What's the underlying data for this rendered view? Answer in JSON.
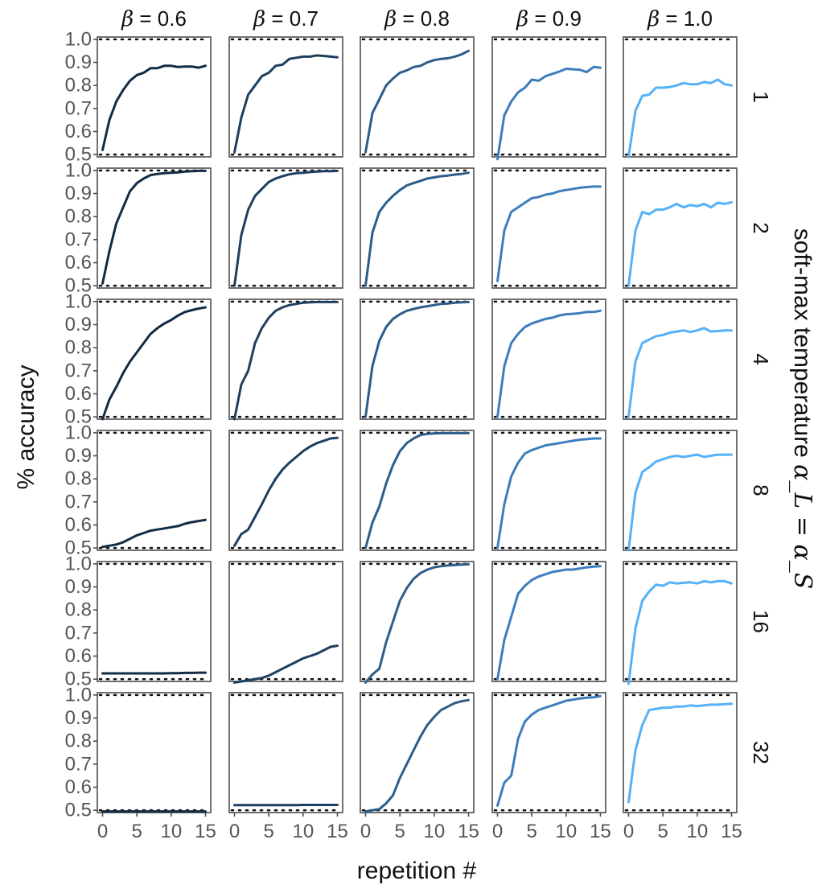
{
  "chart_data": {
    "type": "line",
    "layout": "facet-grid",
    "title": "",
    "xlabel": "repetition #",
    "ylabel": "% accuracy",
    "row_title_pre": "soft-max temperature ",
    "row_title_math": "α_L = α_S",
    "xlim": [
      0,
      15
    ],
    "ylim": [
      0.49,
      1.01
    ],
    "x_ticks": [
      0,
      5,
      10,
      15
    ],
    "x_tick_labels": [
      "0",
      "5",
      "10",
      "15"
    ],
    "y_ticks": [
      0.5,
      0.6,
      0.7,
      0.8,
      0.9,
      1.0
    ],
    "y_tick_labels": [
      "0.5",
      "0.6",
      "0.7",
      "0.8",
      "0.9",
      "1.0"
    ],
    "reference_lines": [
      0.5,
      1.0
    ],
    "grid": false,
    "columns": [
      {
        "label_math": "β",
        "label_value": " = 0.6",
        "color": "#132b43"
      },
      {
        "label_math": "β",
        "label_value": " = 0.7",
        "color": "#1d3f5f"
      },
      {
        "label_math": "β",
        "label_value": " = 0.8",
        "color": "#2c5d8a"
      },
      {
        "label_math": "β",
        "label_value": " = 0.9",
        "color": "#3e7dbd"
      },
      {
        "label_math": "β",
        "label_value": " = 1.0",
        "color": "#56b1f7"
      }
    ],
    "rows": [
      "1",
      "2",
      "4",
      "8",
      "16",
      "32"
    ],
    "x": [
      0,
      1,
      2,
      3,
      4,
      5,
      6,
      7,
      8,
      9,
      10,
      11,
      12,
      13,
      14,
      15
    ],
    "panels": [
      [
        [
          0.52,
          0.65,
          0.73,
          0.78,
          0.82,
          0.845,
          0.855,
          0.875,
          0.875,
          0.885,
          0.885,
          0.88,
          0.882,
          0.882,
          0.877,
          0.885
        ],
        [
          0.51,
          0.66,
          0.76,
          0.8,
          0.84,
          0.855,
          0.885,
          0.89,
          0.915,
          0.92,
          0.925,
          0.925,
          0.93,
          0.928,
          0.925,
          0.922
        ],
        [
          0.51,
          0.68,
          0.74,
          0.8,
          0.83,
          0.855,
          0.865,
          0.88,
          0.885,
          0.9,
          0.91,
          0.915,
          0.918,
          0.925,
          0.935,
          0.95
        ],
        [
          0.48,
          0.67,
          0.73,
          0.77,
          0.79,
          0.825,
          0.82,
          0.84,
          0.85,
          0.86,
          0.872,
          0.87,
          0.868,
          0.858,
          0.88,
          0.877
        ],
        [
          0.49,
          0.69,
          0.755,
          0.76,
          0.79,
          0.79,
          0.793,
          0.8,
          0.81,
          0.805,
          0.805,
          0.815,
          0.81,
          0.825,
          0.805,
          0.8
        ]
      ],
      [
        [
          0.51,
          0.65,
          0.77,
          0.84,
          0.91,
          0.945,
          0.965,
          0.98,
          0.985,
          0.988,
          0.99,
          0.992,
          0.995,
          0.997,
          0.998,
          0.998
        ],
        [
          0.5,
          0.72,
          0.83,
          0.89,
          0.92,
          0.95,
          0.965,
          0.975,
          0.983,
          0.988,
          0.99,
          0.993,
          0.995,
          0.997,
          0.997,
          0.998
        ],
        [
          0.5,
          0.73,
          0.82,
          0.86,
          0.89,
          0.915,
          0.935,
          0.945,
          0.955,
          0.965,
          0.97,
          0.975,
          0.978,
          0.982,
          0.985,
          0.99
        ],
        [
          0.52,
          0.74,
          0.82,
          0.84,
          0.86,
          0.88,
          0.885,
          0.895,
          0.9,
          0.91,
          0.915,
          0.92,
          0.925,
          0.928,
          0.93,
          0.93
        ],
        [
          0.5,
          0.74,
          0.82,
          0.81,
          0.83,
          0.83,
          0.84,
          0.855,
          0.84,
          0.85,
          0.845,
          0.855,
          0.84,
          0.86,
          0.855,
          0.862
        ]
      ],
      [
        [
          0.49,
          0.575,
          0.63,
          0.69,
          0.74,
          0.78,
          0.82,
          0.86,
          0.885,
          0.905,
          0.92,
          0.94,
          0.955,
          0.963,
          0.97,
          0.975
        ],
        [
          0.49,
          0.64,
          0.7,
          0.82,
          0.885,
          0.93,
          0.96,
          0.975,
          0.985,
          0.99,
          0.995,
          0.997,
          0.998,
          0.998,
          0.998,
          0.998
        ],
        [
          0.5,
          0.72,
          0.83,
          0.89,
          0.925,
          0.945,
          0.96,
          0.968,
          0.975,
          0.98,
          0.985,
          0.99,
          0.992,
          0.995,
          0.997,
          0.998
        ],
        [
          0.5,
          0.72,
          0.82,
          0.86,
          0.89,
          0.905,
          0.915,
          0.925,
          0.93,
          0.94,
          0.945,
          0.947,
          0.95,
          0.955,
          0.955,
          0.96
        ],
        [
          0.5,
          0.74,
          0.82,
          0.835,
          0.85,
          0.855,
          0.865,
          0.87,
          0.875,
          0.868,
          0.875,
          0.885,
          0.87,
          0.872,
          0.875,
          0.875
        ]
      ],
      [
        [
          0.505,
          0.51,
          0.515,
          0.525,
          0.54,
          0.555,
          0.565,
          0.575,
          0.58,
          0.585,
          0.59,
          0.595,
          0.605,
          0.612,
          0.617,
          0.622
        ],
        [
          0.51,
          0.56,
          0.58,
          0.635,
          0.69,
          0.75,
          0.8,
          0.84,
          0.87,
          0.895,
          0.92,
          0.94,
          0.955,
          0.965,
          0.975,
          0.978
        ],
        [
          0.5,
          0.61,
          0.68,
          0.78,
          0.86,
          0.92,
          0.955,
          0.975,
          0.99,
          0.995,
          0.997,
          0.998,
          0.998,
          0.998,
          0.998,
          0.998
        ],
        [
          0.5,
          0.69,
          0.81,
          0.87,
          0.91,
          0.925,
          0.935,
          0.945,
          0.95,
          0.955,
          0.96,
          0.965,
          0.97,
          0.972,
          0.975,
          0.975
        ],
        [
          0.49,
          0.74,
          0.83,
          0.85,
          0.875,
          0.885,
          0.895,
          0.9,
          0.895,
          0.9,
          0.905,
          0.895,
          0.9,
          0.905,
          0.905,
          0.905
        ]
      ],
      [
        [
          0.525,
          0.525,
          0.525,
          0.525,
          0.525,
          0.525,
          0.525,
          0.525,
          0.525,
          0.525,
          0.526,
          0.526,
          0.527,
          0.527,
          0.528,
          0.528
        ],
        [
          0.485,
          0.49,
          0.495,
          0.5,
          0.505,
          0.515,
          0.53,
          0.545,
          0.56,
          0.575,
          0.59,
          0.6,
          0.61,
          0.625,
          0.64,
          0.645
        ],
        [
          0.485,
          0.52,
          0.545,
          0.66,
          0.75,
          0.84,
          0.895,
          0.935,
          0.96,
          0.975,
          0.985,
          0.99,
          0.993,
          0.995,
          0.997,
          0.998
        ],
        [
          0.5,
          0.67,
          0.77,
          0.87,
          0.905,
          0.93,
          0.945,
          0.955,
          0.965,
          0.97,
          0.975,
          0.975,
          0.98,
          0.985,
          0.988,
          0.99
        ],
        [
          0.48,
          0.72,
          0.84,
          0.88,
          0.91,
          0.905,
          0.92,
          0.915,
          0.918,
          0.92,
          0.915,
          0.925,
          0.92,
          0.925,
          0.925,
          0.915
        ]
      ],
      [
        [
          0.495,
          0.495,
          0.495,
          0.495,
          0.495,
          0.495,
          0.495,
          0.495,
          0.495,
          0.495,
          0.495,
          0.495,
          0.495,
          0.495,
          0.495,
          0.495
        ],
        [
          0.522,
          0.522,
          0.522,
          0.522,
          0.522,
          0.522,
          0.522,
          0.522,
          0.522,
          0.522,
          0.523,
          0.523,
          0.523,
          0.523,
          0.523,
          0.523
        ],
        [
          0.495,
          0.5,
          0.505,
          0.53,
          0.565,
          0.64,
          0.7,
          0.76,
          0.82,
          0.87,
          0.905,
          0.935,
          0.95,
          0.965,
          0.973,
          0.978
        ],
        [
          0.52,
          0.62,
          0.65,
          0.81,
          0.885,
          0.915,
          0.935,
          0.945,
          0.955,
          0.965,
          0.975,
          0.98,
          0.985,
          0.988,
          0.99,
          0.995
        ],
        [
          0.535,
          0.76,
          0.87,
          0.935,
          0.94,
          0.945,
          0.945,
          0.95,
          0.95,
          0.955,
          0.952,
          0.955,
          0.958,
          0.958,
          0.96,
          0.962
        ]
      ]
    ]
  }
}
